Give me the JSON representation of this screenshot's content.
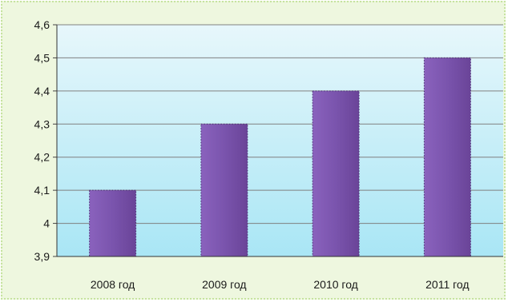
{
  "chart_data": {
    "type": "bar",
    "categories": [
      "2008 год",
      "2009 год",
      "2010 год",
      "2011 год"
    ],
    "values": [
      4.1,
      4.3,
      4.4,
      4.5
    ],
    "yticks": [
      "3,9",
      "4",
      "4,1",
      "4,2",
      "4,3",
      "4,4",
      "4,5",
      "4,6"
    ],
    "ylim": [
      3.9,
      4.6
    ],
    "grid": true,
    "legend": "none"
  },
  "colors": {
    "plot_bg_top": "#e7f7fb",
    "plot_bg_bottom": "#a9e6f5",
    "bar_light": "#8a62bd",
    "bar_dark": "#6a4498",
    "gridline": "#808080",
    "frame_bg": "#eef7df"
  }
}
